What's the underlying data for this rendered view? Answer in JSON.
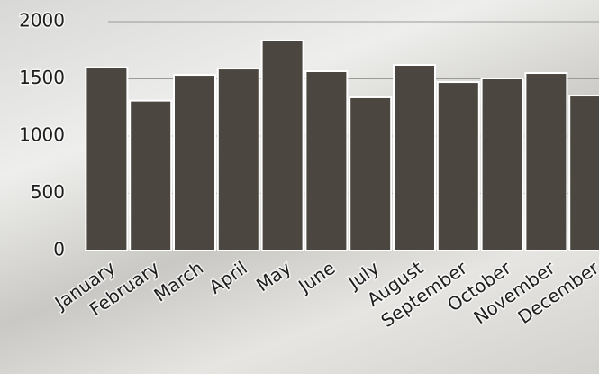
{
  "chart_data": {
    "type": "bar",
    "categories": [
      "January",
      "February",
      "March",
      "April",
      "May",
      "June",
      "July",
      "August",
      "September",
      "October",
      "November",
      "December"
    ],
    "values": [
      1600,
      1310,
      1535,
      1590,
      1835,
      1567,
      1339,
      1622,
      1472,
      1504,
      1551,
      1354
    ],
    "color": "#4b463f",
    "ylim": [
      0,
      2000
    ],
    "yticks": [
      0,
      500,
      1000,
      1500,
      2000
    ],
    "grid": true
  }
}
